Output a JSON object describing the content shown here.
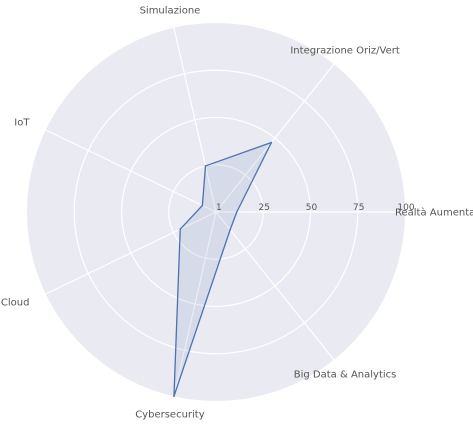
{
  "chart_data": {
    "type": "radar",
    "categories": [
      "Realtà Aumentata",
      "Integrazione Oriz/Vert",
      "Simulazione",
      "IoT",
      "Cloud",
      "Cybersecurity",
      "Big Data & Analytics"
    ],
    "series": [
      {
        "values": [
          11,
          47,
          25,
          8,
          21,
          100,
          12
        ]
      }
    ],
    "rlim": [
      0,
      100
    ],
    "rticks": [
      1,
      25,
      50,
      75,
      100
    ],
    "grid": true,
    "colors": {
      "line": "#4c72b0",
      "fill": "#4c72b0",
      "background": "#eaeaf2",
      "grid": "#ffffff"
    }
  }
}
